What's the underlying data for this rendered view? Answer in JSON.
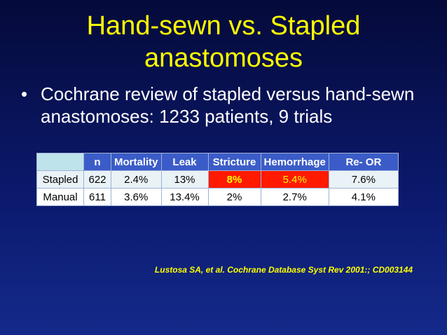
{
  "title": {
    "line1": "Hand-sewn vs. Stapled",
    "line2": "anastomoses"
  },
  "bullet": "Cochrane review of stapled versus hand-sewn anastomoses: 1233 patients, 9 trials",
  "table": {
    "headers": [
      "",
      "n",
      "Mortality",
      "Leak",
      "Stricture",
      "Hemorrhage",
      "Re- OR"
    ],
    "rows": [
      [
        "Stapled",
        "622",
        "2.4%",
        "13%",
        "8%",
        "5.4%",
        "7.6%"
      ],
      [
        "Manual",
        "611",
        "3.6%",
        "13.4%",
        "2%",
        "2.7%",
        "4.1%"
      ]
    ]
  },
  "citation": "Lustosa SA, et al. Cochrane Database Syst Rev 2001:; CD003144",
  "colors": {
    "title": "#ffff00",
    "highlight_bg": "#ff1a00",
    "header_bg": "#3b5cc8"
  }
}
